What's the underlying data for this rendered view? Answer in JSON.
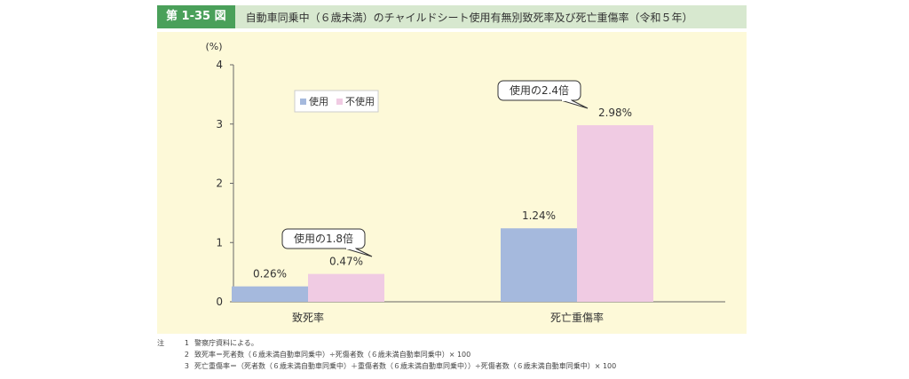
{
  "figure": {
    "number": "第 1-35 図",
    "title": "自動車同乗中（６歳未満）のチャイルドシート使用有無別致死率及び死亡重傷率（令和５年）"
  },
  "chart_data": {
    "type": "bar",
    "y_unit": "(%)",
    "ylim": [
      0,
      4
    ],
    "yticks": [
      "0",
      "1",
      "2",
      "3",
      "4"
    ],
    "categories": [
      "致死率",
      "死亡重傷率"
    ],
    "series": [
      {
        "name": "使用",
        "values": [
          0.26,
          1.24
        ],
        "labels": [
          "0.26%",
          "1.24%"
        ],
        "color": "#a5b9dd"
      },
      {
        "name": "不使用",
        "values": [
          0.47,
          2.98
        ],
        "labels": [
          "0.47%",
          "2.98%"
        ],
        "color": "#f0cbe3"
      }
    ],
    "callouts": [
      "使用の1.8倍",
      "使用の2.4倍"
    ],
    "legend_position": "top-left",
    "grid": false
  },
  "notes": {
    "mark": "注",
    "items": [
      {
        "num": "1",
        "text": "警察庁資料による。"
      },
      {
        "num": "2",
        "text": "致死率＝死者数（６歳未満自動車同乗中）÷死傷者数（６歳未満自動車同乗中）× 100"
      },
      {
        "num": "3",
        "text": "死亡重傷率＝（死者数（６歳未満自動車同乗中）＋重傷者数（６歳未満自動車同乗中））÷死傷者数（６歳未満自動車同乗中）× 100"
      }
    ]
  }
}
